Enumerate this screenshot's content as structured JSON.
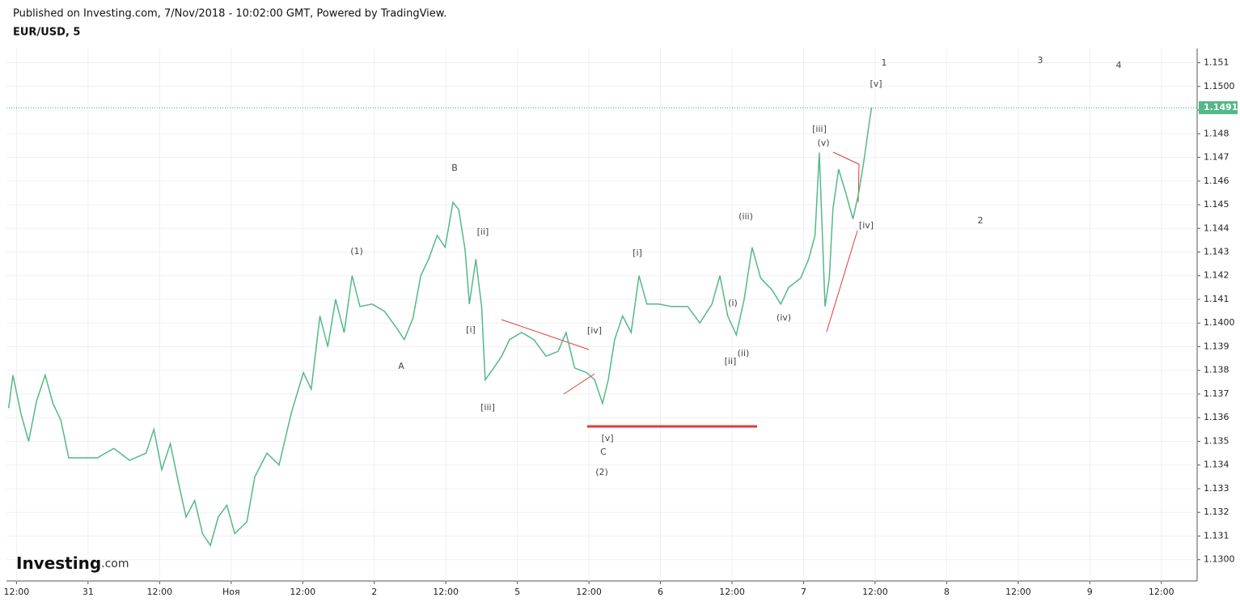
{
  "header": {
    "published": "Published on Investing.com, 7/Nov/2018 - 10:02:00 GMT, Powered by TradingView.",
    "symbol": "EUR/USD, 5"
  },
  "logo": {
    "name": "Investing",
    "suffix": ".com"
  },
  "chart_data": {
    "type": "line",
    "color": "#53b987",
    "x": [
      -0.11,
      -0.05,
      0.06,
      0.17,
      0.28,
      0.4,
      0.51,
      0.62,
      0.73,
      0.9,
      1.13,
      1.36,
      1.58,
      1.81,
      1.92,
      2.03,
      2.15,
      2.26,
      2.37,
      2.49,
      2.6,
      2.71,
      2.82,
      2.94,
      3.05,
      3.22,
      3.33,
      3.5,
      3.67,
      3.84,
      4.01,
      4.12,
      4.24,
      4.35,
      4.46,
      4.58,
      4.69,
      4.8,
      4.97,
      5.14,
      5.31,
      5.42,
      5.54,
      5.65,
      5.76,
      5.88,
      5.99,
      6.1,
      6.18,
      6.27,
      6.33,
      6.42,
      6.5,
      6.55,
      6.67,
      6.78,
      6.89,
      7.06,
      7.23,
      7.4,
      7.57,
      7.68,
      7.8,
      7.97,
      8.08,
      8.19,
      8.27,
      8.36,
      8.47,
      8.59,
      8.7,
      8.81,
      8.98,
      9.15,
      9.38,
      9.55,
      9.72,
      9.83,
      9.94,
      10.06,
      10.17,
      10.28,
      10.4,
      10.56,
      10.68,
      10.79,
      10.96,
      11.07,
      11.16,
      11.22,
      11.3,
      11.36,
      11.41,
      11.49,
      11.58,
      11.69,
      11.77,
      11.84,
      11.92,
      11.95
    ],
    "values": [
      1.1364,
      1.1378,
      1.1362,
      1.135,
      1.1367,
      1.1378,
      1.1366,
      1.1359,
      1.1343,
      1.1343,
      1.1343,
      1.1347,
      1.1342,
      1.1345,
      1.1355,
      1.1338,
      1.1349,
      1.1333,
      1.1318,
      1.1325,
      1.1311,
      1.1306,
      1.1318,
      1.1323,
      1.1311,
      1.1316,
      1.1335,
      1.1345,
      1.134,
      1.1362,
      1.1379,
      1.1372,
      1.1403,
      1.139,
      1.141,
      1.1396,
      1.142,
      1.1407,
      1.1408,
      1.1405,
      1.1398,
      1.1393,
      1.1402,
      1.142,
      1.1427,
      1.1437,
      1.1432,
      1.1451,
      1.1448,
      1.1431,
      1.1408,
      1.1427,
      1.1407,
      1.1376,
      1.1381,
      1.1386,
      1.1393,
      1.1396,
      1.1393,
      1.1386,
      1.1388,
      1.1396,
      1.1381,
      1.1379,
      1.1376,
      1.1366,
      1.1376,
      1.1393,
      1.1403,
      1.1396,
      1.142,
      1.1408,
      1.1408,
      1.1407,
      1.1407,
      1.14,
      1.1408,
      1.142,
      1.1403,
      1.1395,
      1.141,
      1.1432,
      1.1419,
      1.1414,
      1.1408,
      1.1415,
      1.1419,
      1.1427,
      1.1437,
      1.1472,
      1.1407,
      1.1419,
      1.1448,
      1.1465,
      1.1456,
      1.1444,
      1.1455,
      1.1468,
      1.1485,
      1.1491
    ],
    "last_price": 1.1491,
    "xlim": [
      -0.14,
      16.5
    ],
    "xticks": [
      {
        "value": 0,
        "label": "12:00"
      },
      {
        "value": 1,
        "label": "31"
      },
      {
        "value": 2,
        "label": "12:00"
      },
      {
        "value": 3,
        "label": "Ноя"
      },
      {
        "value": 4,
        "label": "12:00"
      },
      {
        "value": 5,
        "label": "2"
      },
      {
        "value": 6,
        "label": "12:00"
      },
      {
        "value": 7,
        "label": "5"
      },
      {
        "value": 8,
        "label": "12:00"
      },
      {
        "value": 9,
        "label": "6"
      },
      {
        "value": 10,
        "label": "12:00"
      },
      {
        "value": 11,
        "label": "7"
      },
      {
        "value": 12,
        "label": "12:00"
      },
      {
        "value": 13,
        "label": "8"
      },
      {
        "value": 14,
        "label": "12:00"
      },
      {
        "value": 15,
        "label": "9"
      },
      {
        "value": 16,
        "label": "12:00"
      }
    ],
    "ylim": [
      1.1291,
      1.1516
    ],
    "yticks": [
      {
        "value": 1.13,
        "label": "1.1300"
      },
      1.131,
      1.132,
      1.133,
      1.134,
      1.135,
      1.136,
      1.137,
      1.138,
      1.139,
      {
        "value": 1.14,
        "label": "1.1400"
      },
      1.141,
      1.142,
      1.143,
      1.144,
      1.145,
      1.146,
      1.147,
      1.148,
      1.149,
      {
        "value": 1.15,
        "label": "1.1500"
      },
      1.151
    ],
    "grid": true,
    "annotations": [
      "1",
      "3",
      "4",
      "[v]",
      "[iii]",
      "(v)",
      "B",
      "(iii)",
      "2",
      "[iv]",
      "[ii]",
      "(1)",
      "[i]",
      "(i)",
      "(iv)",
      "[i]",
      "[iv]",
      "[ii]",
      "(ii)",
      "A",
      "[iii]",
      "[v]",
      "C",
      "(2)"
    ]
  }
}
